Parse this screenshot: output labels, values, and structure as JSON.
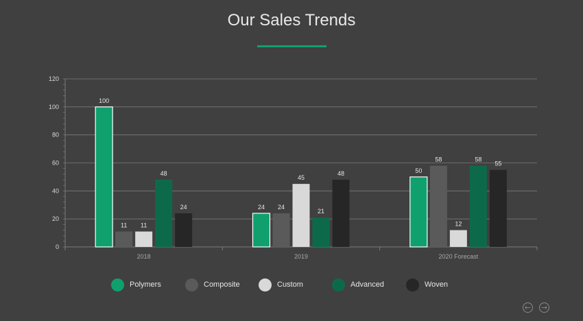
{
  "title": "Our Sales Trends",
  "colors": {
    "background": "#404040",
    "accent": "#0fa06e",
    "axis_text": "#d8d8d8",
    "grid": "#7a7a7a"
  },
  "chart_data": {
    "type": "bar",
    "categories": [
      "2018",
      "2019",
      "2020 Forecast"
    ],
    "series": [
      {
        "name": "Polymers",
        "color": "#0fa06e",
        "values": [
          100,
          24,
          50
        ]
      },
      {
        "name": "Composite",
        "color": "#5a5a5a",
        "values": [
          11,
          24,
          58
        ]
      },
      {
        "name": "Custom",
        "color": "#d9d9d9",
        "values": [
          11,
          45,
          12
        ]
      },
      {
        "name": "Advanced",
        "color": "#0c6a4a",
        "values": [
          48,
          21,
          58
        ]
      },
      {
        "name": "Woven",
        "color": "#262626",
        "values": [
          24,
          48,
          55
        ]
      }
    ],
    "yticks": [
      "0",
      "20",
      "40",
      "60",
      "80",
      "100",
      "120"
    ],
    "ylim": [
      0,
      120
    ],
    "grid": true,
    "legend_position": "bottom",
    "data_labels": true
  },
  "navigation": {
    "prev_icon": "arrow-left-circle-icon",
    "next_icon": "arrow-right-circle-icon",
    "prev_glyph": "←",
    "next_glyph": "→"
  }
}
